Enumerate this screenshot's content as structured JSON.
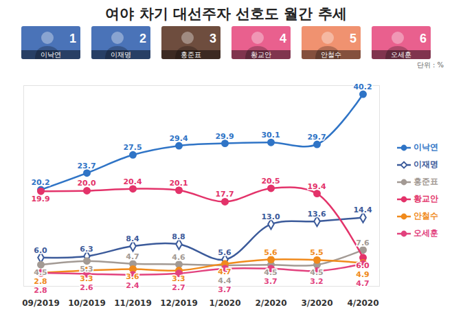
{
  "chart_data": {
    "type": "line",
    "title": "여야 차기 대선주자 선호도 월간 추세",
    "subtitle": "단위 : %",
    "categories": [
      "09/2019",
      "10/2019",
      "11/2019",
      "12/2019",
      "1/2020",
      "2/2020",
      "3/2020",
      "4/2020"
    ],
    "series": [
      {
        "name": "이낙연",
        "color": "#2f74c6",
        "marker": "circle",
        "values": [
          20.2,
          23.7,
          27.5,
          29.4,
          29.9,
          30.1,
          29.7,
          40.2
        ]
      },
      {
        "name": "이재명",
        "color": "#3b5a9a",
        "marker": "diamond",
        "values": [
          6.0,
          6.3,
          8.4,
          8.8,
          5.6,
          13.0,
          13.6,
          14.4
        ]
      },
      {
        "name": "홍준표",
        "color": "#a39a94",
        "marker": "circle",
        "values": [
          4.5,
          5.3,
          4.7,
          4.6,
          4.4,
          4.5,
          4.5,
          7.6
        ]
      },
      {
        "name": "황교안",
        "color": "#e3336a",
        "marker": "circle",
        "values": [
          19.9,
          20.0,
          20.4,
          20.1,
          17.7,
          20.5,
          19.4,
          6.0
        ]
      },
      {
        "name": "안철수",
        "color": "#f08a1c",
        "marker": "circle",
        "values": [
          2.8,
          3.3,
          3.6,
          3.3,
          4.7,
          5.6,
          5.5,
          4.9
        ]
      },
      {
        "name": "오세훈",
        "color": "#e2427e",
        "marker": "circle",
        "values": [
          2.8,
          2.6,
          2.4,
          2.7,
          3.7,
          3.7,
          3.2,
          4.7
        ]
      }
    ],
    "ylim": [
      0,
      42
    ],
    "yticks": [],
    "tick_labels": "x",
    "data_labels": true,
    "legend": "right",
    "grid": false
  },
  "candidates": [
    {
      "number": 1,
      "name": "이낙연",
      "color": "#4a73b8"
    },
    {
      "number": 2,
      "name": "이재명",
      "color": "#4a73b8"
    },
    {
      "number": 3,
      "name": "홍준표",
      "color": "#6e4d3e"
    },
    {
      "number": 4,
      "name": "황교안",
      "color": "#e9608e"
    },
    {
      "number": 5,
      "name": "안철수",
      "color": "#f09270"
    },
    {
      "number": 6,
      "name": "오세훈",
      "color": "#e9608e"
    }
  ]
}
